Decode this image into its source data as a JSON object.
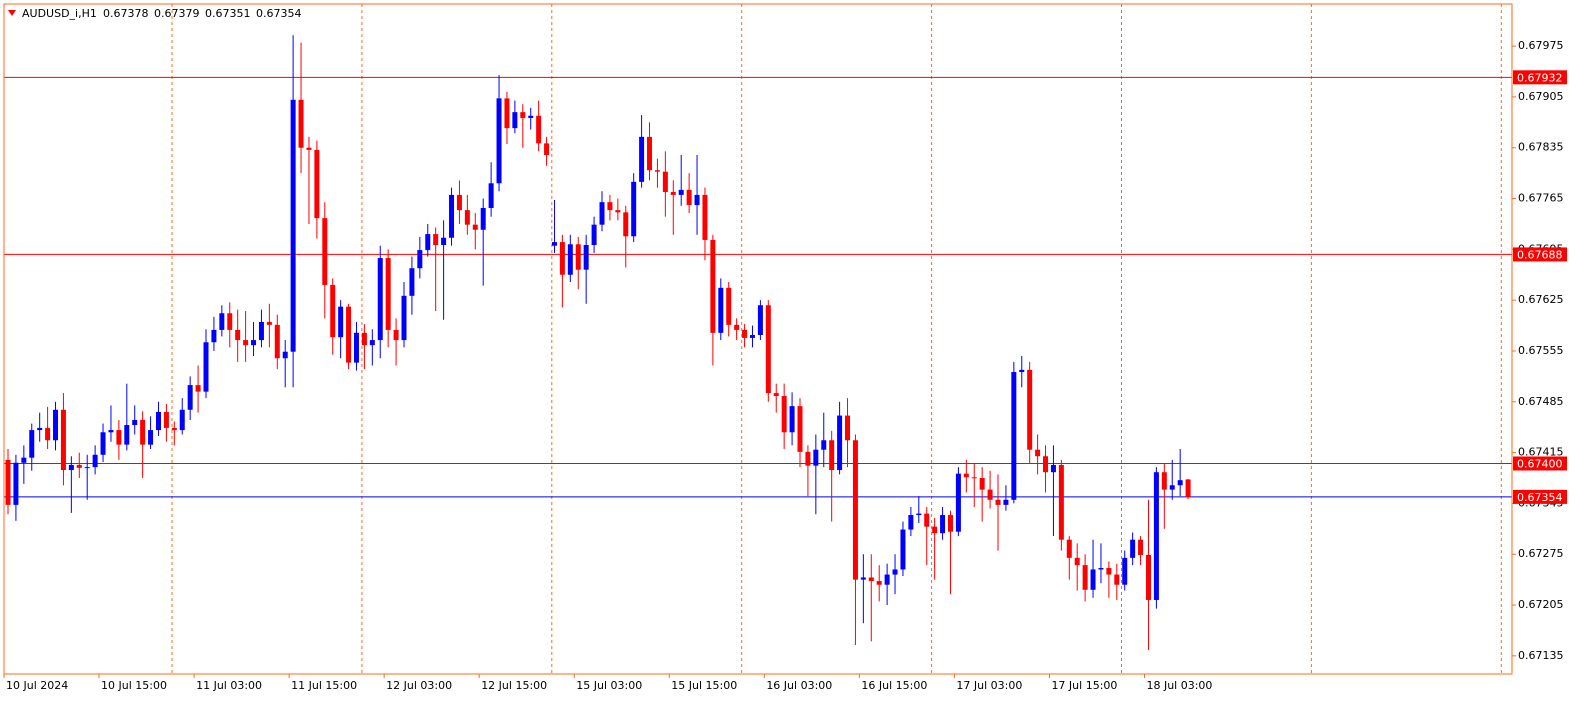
{
  "chart_data": {
    "type": "candlestick",
    "title": "AUDUSD_i,H1",
    "up_color": "#0000ff",
    "down_color": "#ff0000",
    "level_color": "#ff0000",
    "bid_color": "#0000ff",
    "ylim": [
      0.6711,
      0.68033
    ],
    "yticks": [
      0.67975,
      0.67905,
      0.67835,
      0.67765,
      0.67695,
      0.67625,
      0.67555,
      0.67485,
      0.67415,
      0.67345,
      0.67275,
      0.67205,
      0.67135
    ],
    "levels": [
      0.67932,
      0.67688,
      {
        "value": 0.674,
        "label": "0.67400"
      }
    ],
    "categories": [
      "10 Jul 2024",
      null,
      null,
      null,
      null,
      null,
      null,
      null,
      null,
      null,
      null,
      null,
      "10 Jul 15:00",
      null,
      null,
      null,
      null,
      null,
      null,
      null,
      null,
      null,
      null,
      null,
      "11 Jul 03:00",
      null,
      null,
      null,
      null,
      null,
      null,
      null,
      null,
      null,
      null,
      null,
      "11 Jul 15:00",
      null,
      null,
      null,
      null,
      null,
      null,
      null,
      null,
      null,
      null,
      null,
      "12 Jul 03:00",
      null,
      null,
      null,
      null,
      null,
      null,
      null,
      null,
      null,
      null,
      null,
      "12 Jul 15:00",
      null,
      null,
      null,
      null,
      null,
      null,
      null,
      null,
      null,
      null,
      null,
      "15 Jul 03:00",
      null,
      null,
      null,
      null,
      null,
      null,
      null,
      null,
      null,
      null,
      null,
      "15 Jul 15:00",
      null,
      null,
      null,
      null,
      null,
      null,
      null,
      null,
      null,
      null,
      null,
      "16 Jul 03:00",
      null,
      null,
      null,
      null,
      null,
      null,
      null,
      null,
      null,
      null,
      null,
      "16 Jul 15:00",
      null,
      null,
      null,
      null,
      null,
      null,
      null,
      null,
      null,
      null,
      null,
      "17 Jul 03:00",
      null,
      null,
      null,
      null,
      null,
      null,
      null,
      null,
      null,
      null,
      null,
      "17 Jul 15:00",
      null,
      null,
      null,
      null,
      null,
      null,
      null,
      null,
      null,
      null,
      null,
      "18 Jul 03:00",
      null,
      null,
      null,
      null,
      null
    ],
    "open": [
      0.67405,
      0.67343,
      0.67401,
      0.67408,
      0.67446,
      0.67449,
      0.67432,
      0.67474,
      0.67391,
      0.67398,
      0.67394,
      0.67395,
      0.67412,
      0.67443,
      0.67446,
      0.67426,
      0.67453,
      0.6746,
      0.67426,
      0.67446,
      0.67471,
      0.67449,
      0.67446,
      0.67474,
      0.67508,
      0.67499,
      0.67567,
      0.67584,
      0.67607,
      0.67584,
      0.6757,
      0.67563,
      0.6757,
      0.67595,
      0.67591,
      0.67545,
      0.67554,
      0.67901,
      0.67835,
      0.67832,
      0.67738,
      0.67646,
      0.67574,
      0.67616,
      0.67539,
      0.6758,
      0.67563,
      0.6757,
      0.67683,
      0.67584,
      0.6757,
      0.67631,
      0.67669,
      0.67694,
      0.67716,
      0.67701,
      0.67711,
      0.6777,
      0.67749,
      0.67729,
      0.67722,
      0.67752,
      0.67786,
      0.67903,
      0.67862,
      0.67884,
      0.67876,
      0.67879,
      0.67841,
      0.677,
      0.67705,
      0.6766,
      0.67702,
      0.67667,
      0.67701,
      0.67729,
      0.6776,
      0.67749,
      0.67746,
      0.67713,
      0.67788,
      0.6785,
      0.67804,
      0.67802,
      0.67774,
      0.6777,
      0.67777,
      0.67756,
      0.6777,
      0.67708,
      0.6758,
      0.67642,
      0.67591,
      0.67584,
      0.67573,
      0.67577,
      0.67618,
      0.67497,
      0.67493,
      0.67443,
      0.67479,
      0.67416,
      0.67397,
      0.67419,
      0.67432,
      0.67391,
      0.67466,
      0.67432,
      0.6724,
      0.67243,
      0.67238,
      0.67233,
      0.67247,
      0.67254,
      0.67309,
      0.67329,
      0.67331,
      0.67313,
      0.67304,
      0.67329,
      0.67306,
      0.67386,
      0.67381,
      0.6738,
      0.67364,
      0.6735,
      0.67343,
      0.6735,
      0.67526,
      0.67529,
      0.67419,
      0.6741,
      0.67388,
      0.67398,
      0.67295,
      0.6727,
      0.6726,
      0.67226,
      0.67254,
      0.67256,
      0.67247,
      0.67233,
      0.6727,
      0.67295,
      0.67274,
      0.67212,
      0.67388,
      0.67364,
      0.6737,
      0.67378
    ],
    "high": [
      0.6742,
      0.67412,
      0.67425,
      0.67455,
      0.6747,
      0.67478,
      0.67485,
      0.67497,
      0.6741,
      0.67415,
      0.67412,
      0.67425,
      0.67455,
      0.6748,
      0.6746,
      0.6751,
      0.6748,
      0.67472,
      0.67465,
      0.67485,
      0.67482,
      0.67458,
      0.6749,
      0.6752,
      0.67535,
      0.67585,
      0.67602,
      0.67618,
      0.67622,
      0.67612,
      0.6761,
      0.67595,
      0.67612,
      0.6762,
      0.67605,
      0.6757,
      0.6799,
      0.6798,
      0.6785,
      0.67845,
      0.6776,
      0.67655,
      0.67625,
      0.6762,
      0.67595,
      0.67592,
      0.67585,
      0.677,
      0.67695,
      0.676,
      0.6765,
      0.67685,
      0.67712,
      0.6773,
      0.67725,
      0.67735,
      0.6778,
      0.6779,
      0.6777,
      0.67745,
      0.67765,
      0.67815,
      0.67935,
      0.67912,
      0.679,
      0.67895,
      0.6789,
      0.679,
      0.6785,
      0.67763,
      0.67715,
      0.67715,
      0.67712,
      0.67715,
      0.6774,
      0.67775,
      0.6777,
      0.67765,
      0.67755,
      0.678,
      0.6788,
      0.6787,
      0.6782,
      0.6783,
      0.6779,
      0.67825,
      0.678,
      0.67825,
      0.6778,
      0.67715,
      0.67655,
      0.6765,
      0.676,
      0.67592,
      0.6759,
      0.67625,
      0.67625,
      0.6751,
      0.6751,
      0.67498,
      0.6749,
      0.67425,
      0.6744,
      0.6747,
      0.67445,
      0.67485,
      0.6749,
      0.6744,
      0.67275,
      0.67275,
      0.6726,
      0.67262,
      0.67275,
      0.6732,
      0.6734,
      0.67355,
      0.6734,
      0.67325,
      0.6734,
      0.67335,
      0.67395,
      0.67405,
      0.674,
      0.67395,
      0.6739,
      0.67385,
      0.6737,
      0.6754,
      0.67548,
      0.6754,
      0.6744,
      0.67425,
      0.67425,
      0.67405,
      0.673,
      0.6729,
      0.67275,
      0.67295,
      0.6729,
      0.67265,
      0.67262,
      0.6728,
      0.67305,
      0.673,
      0.6735,
      0.67395,
      0.674,
      0.67405,
      0.6742,
      0.67379
    ],
    "low": [
      0.6733,
      0.67321,
      0.67372,
      0.6739,
      0.6743,
      0.6742,
      0.67418,
      0.6737,
      0.67332,
      0.6738,
      0.6735,
      0.67385,
      0.67402,
      0.6743,
      0.67405,
      0.67418,
      0.6744,
      0.6738,
      0.6742,
      0.67438,
      0.6743,
      0.67425,
      0.6744,
      0.6746,
      0.6747,
      0.6749,
      0.67555,
      0.67575,
      0.6756,
      0.6754,
      0.6754,
      0.67548,
      0.6756,
      0.6756,
      0.6753,
      0.67505,
      0.67505,
      0.678,
      0.6773,
      0.6771,
      0.676,
      0.6755,
      0.67545,
      0.6753,
      0.67528,
      0.6753,
      0.67535,
      0.67545,
      0.6756,
      0.67535,
      0.6756,
      0.67605,
      0.67655,
      0.67685,
      0.6761,
      0.67598,
      0.677,
      0.6773,
      0.67715,
      0.67695,
      0.67645,
      0.6774,
      0.67775,
      0.6784,
      0.67855,
      0.67835,
      0.6786,
      0.6783,
      0.6781,
      0.6769,
      0.67615,
      0.6765,
      0.6764,
      0.6762,
      0.6769,
      0.6772,
      0.67735,
      0.67735,
      0.6767,
      0.67705,
      0.6778,
      0.6779,
      0.6778,
      0.6774,
      0.67715,
      0.67755,
      0.67745,
      0.67715,
      0.6768,
      0.67535,
      0.6757,
      0.67575,
      0.6757,
      0.6756,
      0.6756,
      0.6757,
      0.67485,
      0.6747,
      0.6742,
      0.67425,
      0.67395,
      0.67355,
      0.6733,
      0.67395,
      0.6732,
      0.67385,
      0.67395,
      0.6715,
      0.6718,
      0.67155,
      0.6721,
      0.67205,
      0.6722,
      0.67245,
      0.673,
      0.67318,
      0.6726,
      0.6724,
      0.67295,
      0.6722,
      0.673,
      0.6736,
      0.6734,
      0.6732,
      0.67338,
      0.6728,
      0.67335,
      0.67345,
      0.67505,
      0.674,
      0.67385,
      0.6736,
      0.673,
      0.6728,
      0.6724,
      0.67225,
      0.6721,
      0.67215,
      0.67235,
      0.67215,
      0.67212,
      0.67225,
      0.6726,
      0.6726,
      0.67143,
      0.672,
      0.6731,
      0.6735,
      0.67355,
      0.67351
    ],
    "close": [
      0.67343,
      0.67401,
      0.67408,
      0.67446,
      0.67449,
      0.67432,
      0.67474,
      0.67391,
      0.67398,
      0.67394,
      0.67395,
      0.67412,
      0.67443,
      0.67446,
      0.67426,
      0.67453,
      0.6746,
      0.67426,
      0.67446,
      0.67471,
      0.67449,
      0.67446,
      0.67474,
      0.67508,
      0.67499,
      0.67567,
      0.67584,
      0.67607,
      0.67584,
      0.6757,
      0.67563,
      0.6757,
      0.67595,
      0.67591,
      0.67545,
      0.67554,
      0.67901,
      0.67835,
      0.67832,
      0.67738,
      0.67646,
      0.67574,
      0.67616,
      0.67539,
      0.6758,
      0.67563,
      0.6757,
      0.67683,
      0.67584,
      0.6757,
      0.67631,
      0.67669,
      0.67694,
      0.67716,
      0.67701,
      0.67711,
      0.6777,
      0.67749,
      0.67729,
      0.67722,
      0.67752,
      0.67786,
      0.67903,
      0.67862,
      0.67884,
      0.67876,
      0.67879,
      0.67841,
      0.67825,
      0.67705,
      0.6766,
      0.67702,
      0.67667,
      0.67701,
      0.67729,
      0.6776,
      0.67749,
      0.67746,
      0.67713,
      0.67788,
      0.6785,
      0.67804,
      0.67802,
      0.67774,
      0.6777,
      0.67777,
      0.67756,
      0.6777,
      0.67708,
      0.6758,
      0.67642,
      0.67591,
      0.67584,
      0.67573,
      0.67577,
      0.67618,
      0.67497,
      0.67493,
      0.67443,
      0.67479,
      0.67416,
      0.67397,
      0.67419,
      0.67432,
      0.67391,
      0.67466,
      0.67432,
      0.6724,
      0.67243,
      0.67238,
      0.67233,
      0.67247,
      0.67254,
      0.67309,
      0.67329,
      0.67331,
      0.67313,
      0.67304,
      0.67329,
      0.67306,
      0.67386,
      0.67381,
      0.6738,
      0.67364,
      0.6735,
      0.67343,
      0.6735,
      0.67526,
      0.67529,
      0.67419,
      0.6741,
      0.67388,
      0.67398,
      0.67295,
      0.6727,
      0.6726,
      0.67226,
      0.67254,
      0.67256,
      0.67247,
      0.67233,
      0.6727,
      0.67295,
      0.67274,
      0.67212,
      0.67388,
      0.67364,
      0.6737,
      0.67377,
      0.67354
    ]
  }
}
